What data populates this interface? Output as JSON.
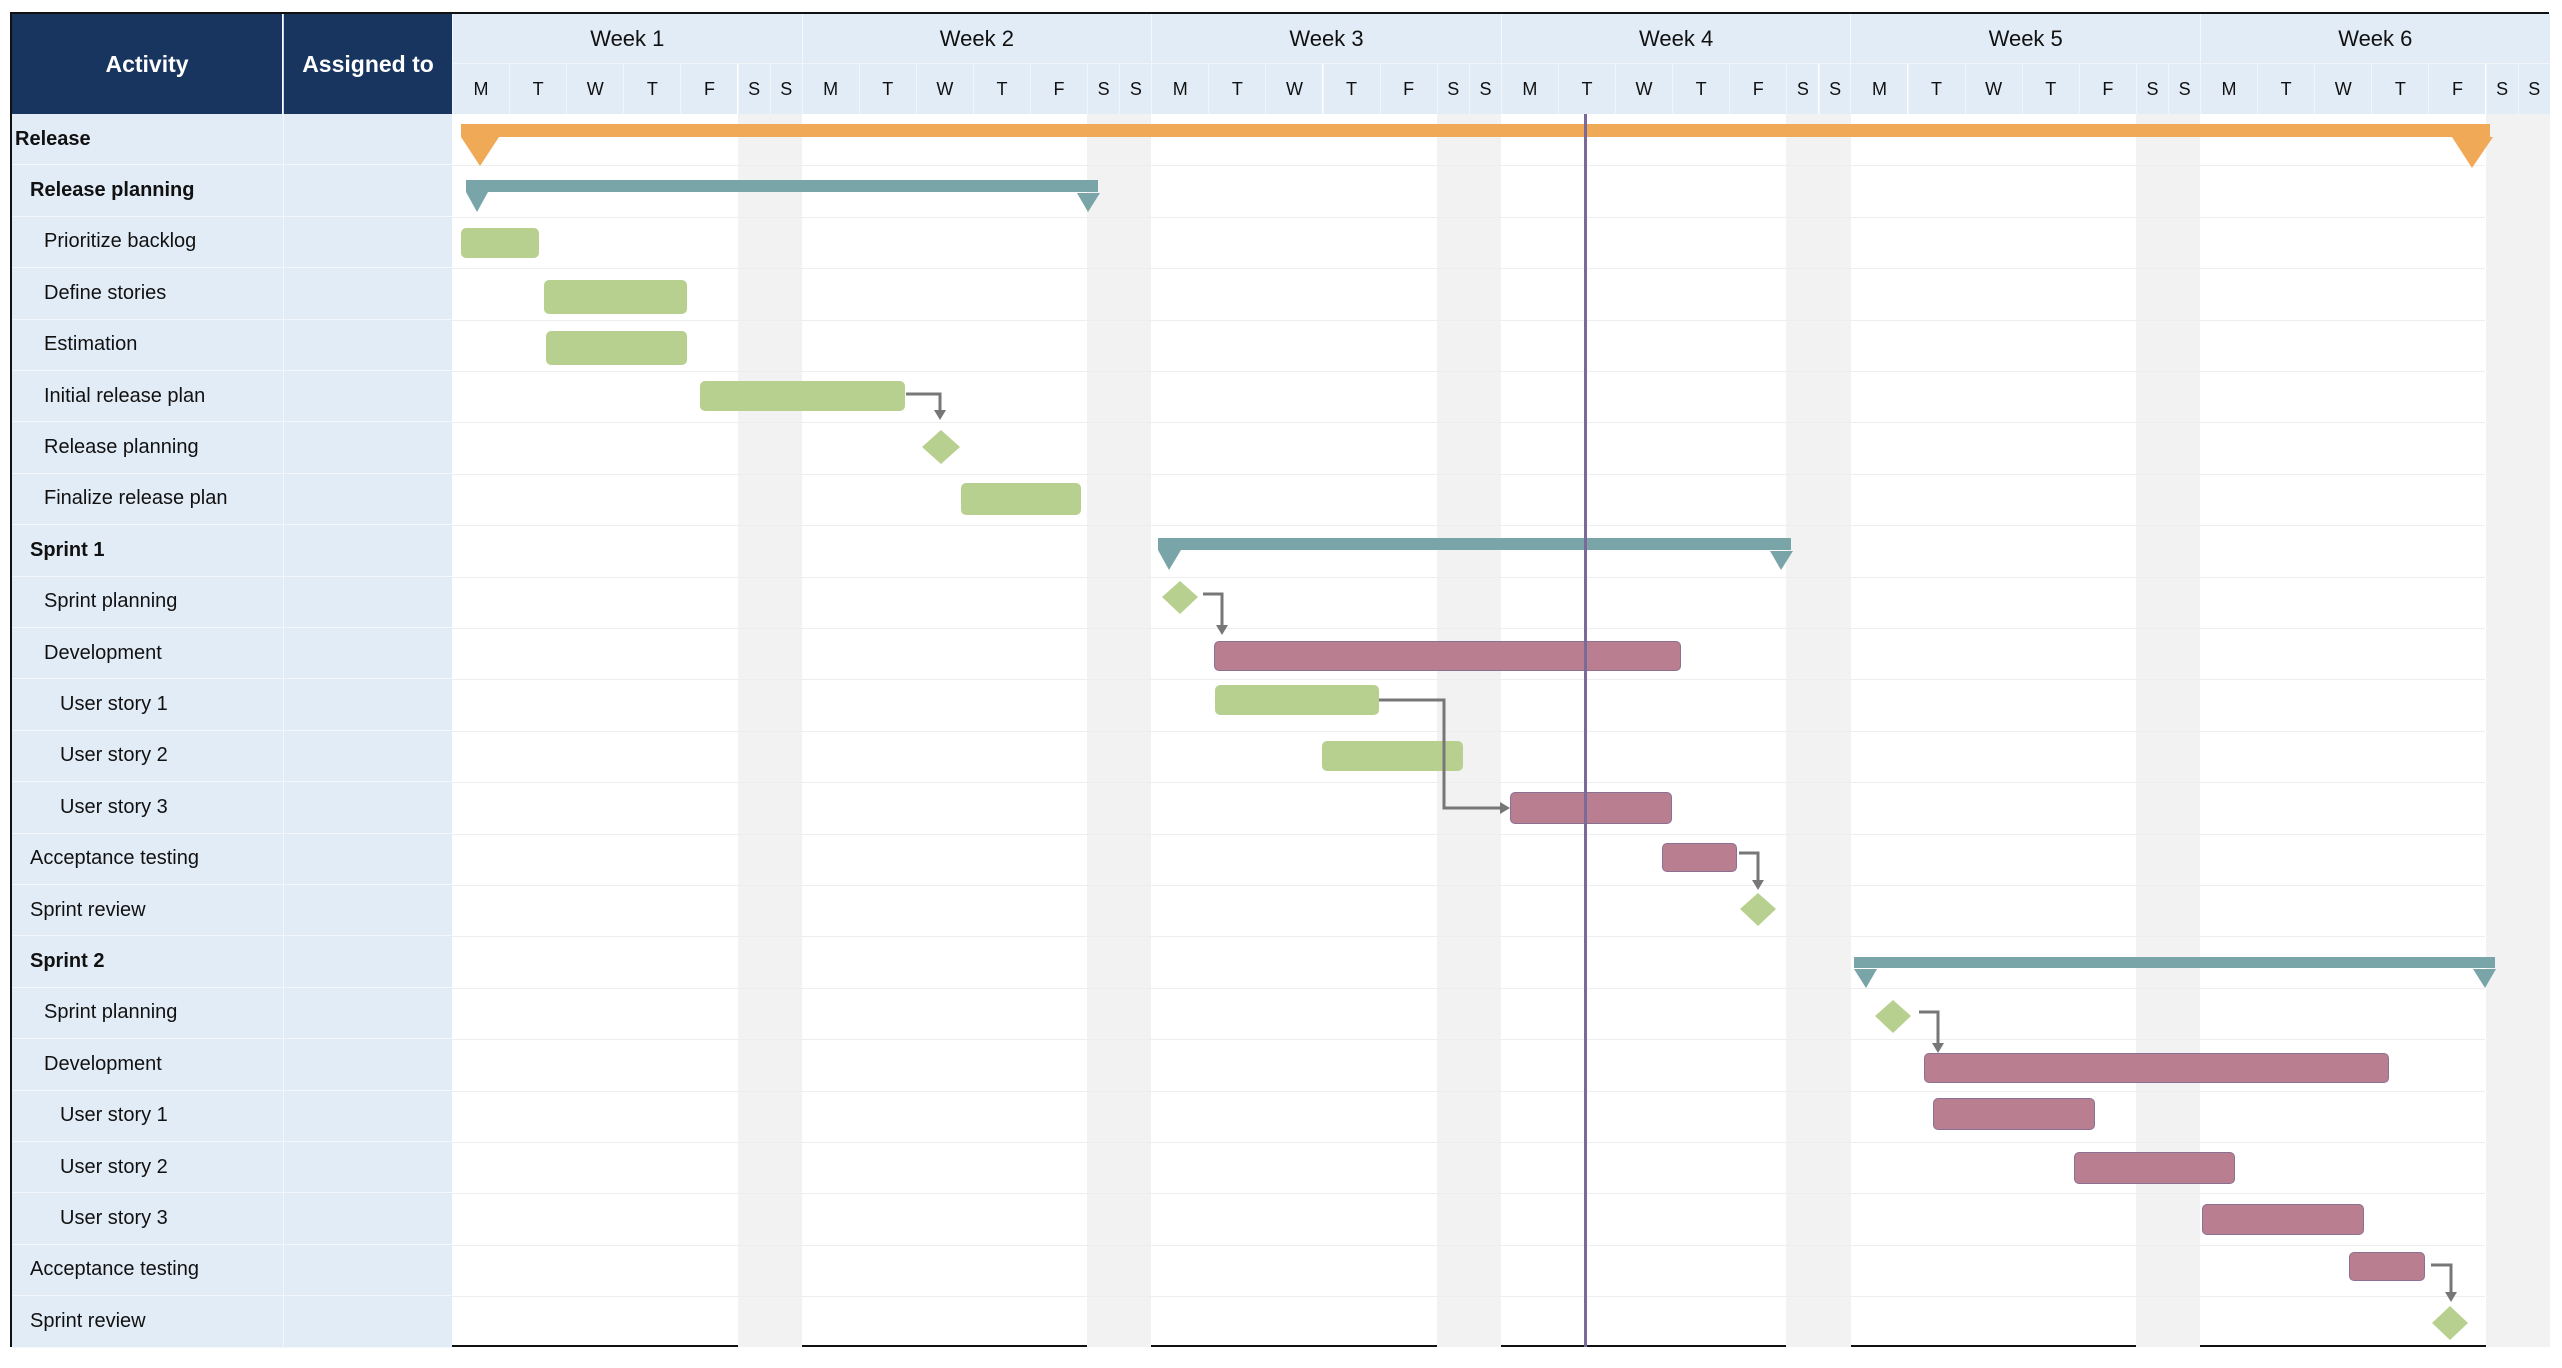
{
  "header": {
    "activity_label": "Activity",
    "assigned_label": "Assigned to",
    "weeks": [
      "Week 1",
      "Week 2",
      "Week 3",
      "Week 4",
      "Week 5",
      "Week 6"
    ],
    "days": [
      "M",
      "T",
      "W",
      "T",
      "F",
      "S",
      "S"
    ]
  },
  "colors": {
    "header_dark": "#17355e",
    "header_light": "#e2ecf7",
    "release_summary": "#f0aa57",
    "phase_summary": "#7aa5a8",
    "task_green": "#b8d08f",
    "task_red": "#b97e8f",
    "today_line": "#7a6a99",
    "weekend": "#f2f2f2",
    "connector": "#777777"
  },
  "today_marker": {
    "week": "Week 4",
    "day": "T"
  },
  "rows": [
    {
      "label": "Release",
      "level": 0,
      "bold": true,
      "assigned": ""
    },
    {
      "label": "Release planning",
      "level": 1,
      "bold": true,
      "assigned": ""
    },
    {
      "label": "Prioritize backlog",
      "level": 2,
      "bold": false,
      "assigned": ""
    },
    {
      "label": "Define stories",
      "level": 2,
      "bold": false,
      "assigned": ""
    },
    {
      "label": "Estimation",
      "level": 2,
      "bold": false,
      "assigned": ""
    },
    {
      "label": "Initial release plan",
      "level": 2,
      "bold": false,
      "assigned": ""
    },
    {
      "label": "Release planning",
      "level": 2,
      "bold": false,
      "assigned": ""
    },
    {
      "label": "Finalize release plan",
      "level": 2,
      "bold": false,
      "assigned": ""
    },
    {
      "label": "Sprint 1",
      "level": 1,
      "bold": true,
      "assigned": ""
    },
    {
      "label": "Sprint planning",
      "level": 2,
      "bold": false,
      "assigned": ""
    },
    {
      "label": "Development",
      "level": 2,
      "bold": false,
      "assigned": ""
    },
    {
      "label": "User story 1",
      "level": 3,
      "bold": false,
      "assigned": ""
    },
    {
      "label": "User story 2",
      "level": 3,
      "bold": false,
      "assigned": ""
    },
    {
      "label": "User story 3",
      "level": 3,
      "bold": false,
      "assigned": ""
    },
    {
      "label": "Acceptance testing",
      "level": 1,
      "bold": false,
      "assigned": ""
    },
    {
      "label": "Sprint review",
      "level": 1,
      "bold": false,
      "assigned": ""
    },
    {
      "label": "Sprint 2",
      "level": 1,
      "bold": true,
      "assigned": ""
    },
    {
      "label": "Sprint planning",
      "level": 2,
      "bold": false,
      "assigned": ""
    },
    {
      "label": "Development",
      "level": 2,
      "bold": false,
      "assigned": ""
    },
    {
      "label": "User story 1",
      "level": 3,
      "bold": false,
      "assigned": ""
    },
    {
      "label": "User story 2",
      "level": 3,
      "bold": false,
      "assigned": ""
    },
    {
      "label": "User story 3",
      "level": 3,
      "bold": false,
      "assigned": ""
    },
    {
      "label": "Acceptance testing",
      "level": 1,
      "bold": false,
      "assigned": ""
    },
    {
      "label": "Sprint review",
      "level": 1,
      "bold": false,
      "assigned": ""
    }
  ],
  "chart_data": {
    "type": "gantt",
    "title": "",
    "time_axis": {
      "weeks": [
        "Week 1",
        "Week 2",
        "Week 3",
        "Week 4",
        "Week 5",
        "Week 6"
      ],
      "days_per_week": [
        "M",
        "T",
        "W",
        "T",
        "F",
        "S",
        "S"
      ]
    },
    "today": "Week 4 Tuesday",
    "tasks": [
      {
        "row": 0,
        "name": "Release",
        "kind": "summary",
        "color": "orange",
        "start": "W1 Mon",
        "end": "W6 Fri"
      },
      {
        "row": 1,
        "name": "Release planning",
        "kind": "summary",
        "color": "teal",
        "start": "W1 Mon",
        "end": "W2 Fri"
      },
      {
        "row": 2,
        "name": "Prioritize backlog",
        "kind": "task",
        "color": "green",
        "start": "W1 Mon",
        "end": "W1 Tue (mid)"
      },
      {
        "row": 3,
        "name": "Define stories",
        "kind": "task",
        "color": "green",
        "start": "W1 Tue",
        "end": "W1 Thu"
      },
      {
        "row": 4,
        "name": "Estimation",
        "kind": "task",
        "color": "green",
        "start": "W1 Tue",
        "end": "W1 Thu"
      },
      {
        "row": 5,
        "name": "Initial release plan",
        "kind": "task",
        "color": "green",
        "start": "W1 Fri",
        "end": "W2 Tue"
      },
      {
        "row": 6,
        "name": "Release planning",
        "kind": "milestone",
        "color": "green",
        "at": "W2 Wed"
      },
      {
        "row": 7,
        "name": "Finalize release plan",
        "kind": "task",
        "color": "green",
        "start": "W2 Thu",
        "end": "W2 Fri"
      },
      {
        "row": 8,
        "name": "Sprint 1",
        "kind": "summary",
        "color": "teal",
        "start": "W3 Mon",
        "end": "W4 Fri"
      },
      {
        "row": 9,
        "name": "Sprint planning",
        "kind": "milestone",
        "color": "green",
        "at": "W3 Mon"
      },
      {
        "row": 10,
        "name": "Development",
        "kind": "task",
        "color": "red",
        "start": "W3 Tue",
        "end": "W4 Wed"
      },
      {
        "row": 11,
        "name": "User story 1",
        "kind": "task",
        "color": "green",
        "start": "W3 Tue",
        "end": "W3 Thu"
      },
      {
        "row": 12,
        "name": "User story 2",
        "kind": "task",
        "color": "green",
        "start": "W3 Thu",
        "end": "W3 Fri"
      },
      {
        "row": 13,
        "name": "User story 3",
        "kind": "task",
        "color": "red",
        "start": "W4 Mon",
        "end": "W4 Wed"
      },
      {
        "row": 14,
        "name": "Acceptance testing",
        "kind": "task",
        "color": "red",
        "start": "W4 Thu",
        "end": "W4 Thu"
      },
      {
        "row": 15,
        "name": "Sprint review",
        "kind": "milestone",
        "color": "green",
        "at": "W4 Fri"
      },
      {
        "row": 16,
        "name": "Sprint 2",
        "kind": "summary",
        "color": "teal",
        "start": "W5 Mon",
        "end": "W6 Fri"
      },
      {
        "row": 17,
        "name": "Sprint planning",
        "kind": "milestone",
        "color": "green",
        "at": "W5 Mon"
      },
      {
        "row": 18,
        "name": "Development",
        "kind": "task",
        "color": "red",
        "start": "W5 Tue",
        "end": "W6 Thu"
      },
      {
        "row": 19,
        "name": "User story 1",
        "kind": "task",
        "color": "red",
        "start": "W5 Tue",
        "end": "W5 Thu"
      },
      {
        "row": 20,
        "name": "User story 2",
        "kind": "task",
        "color": "red",
        "start": "W5 Thu",
        "end": "W6 Mon"
      },
      {
        "row": 21,
        "name": "User story 3",
        "kind": "task",
        "color": "red",
        "start": "W6 Mon",
        "end": "W6 Wed"
      },
      {
        "row": 22,
        "name": "Acceptance testing",
        "kind": "task",
        "color": "red",
        "start": "W6 Thu",
        "end": "W6 Thu"
      },
      {
        "row": 23,
        "name": "Sprint review",
        "kind": "milestone",
        "color": "green",
        "at": "W6 Fri"
      }
    ],
    "dependencies": [
      [
        "Initial release plan",
        "Release planning (milestone)"
      ],
      [
        "Sprint planning (S1)",
        "Development (S1)"
      ],
      [
        "User story 1 (S1)",
        "User story 3 (S1)"
      ],
      [
        "Acceptance testing (S1)",
        "Sprint review (S1)"
      ],
      [
        "Sprint planning (S2)",
        "Development (S2)"
      ],
      [
        "Acceptance testing (S2)",
        "Sprint review (S2)"
      ]
    ]
  }
}
